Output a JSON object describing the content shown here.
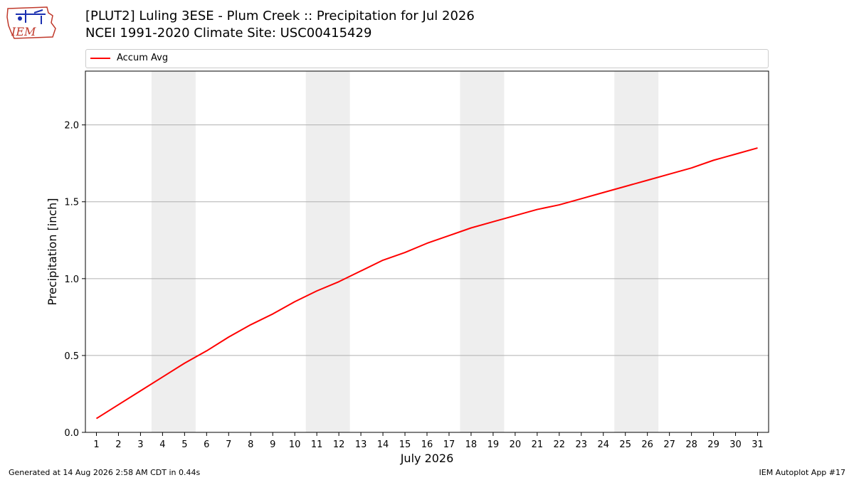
{
  "header": {
    "logo_text": "IEM",
    "title_line1": "[PLUT2] Luling 3ESE - Plum Creek :: Precipitation for Jul 2026",
    "title_line2": "NCEI 1991-2020 Climate Site: USC00415429"
  },
  "footer": {
    "left": "Generated at 14 Aug 2026 2:58 AM CDT in 0.44s",
    "right": "IEM Autoplot App #17"
  },
  "colors": {
    "line": "#ff0000",
    "weekend_shade": "#eeeeee",
    "grid": "#b0b0b0"
  },
  "chart_data": {
    "type": "line",
    "title": "[PLUT2] Luling 3ESE - Plum Creek :: Precipitation for Jul 2026",
    "subtitle": "NCEI 1991-2020 Climate Site: USC00415429",
    "xlabel": "July 2026",
    "ylabel": "Precipitation [inch]",
    "x": [
      1,
      2,
      3,
      4,
      5,
      6,
      7,
      8,
      9,
      10,
      11,
      12,
      13,
      14,
      15,
      16,
      17,
      18,
      19,
      20,
      21,
      22,
      23,
      24,
      25,
      26,
      27,
      28,
      29,
      30,
      31
    ],
    "xlim": [
      0.5,
      31.5
    ],
    "ylim": [
      0,
      2.35
    ],
    "yticks": [
      0.0,
      0.5,
      1.0,
      1.5,
      2.0
    ],
    "ytick_labels": [
      "0.0",
      "0.5",
      "1.0",
      "1.5",
      "2.0"
    ],
    "grid": "horizontal",
    "legend": "top",
    "series": [
      {
        "name": "Accum Avg",
        "color": "#ff0000",
        "values": [
          0.09,
          0.18,
          0.27,
          0.36,
          0.45,
          0.53,
          0.62,
          0.7,
          0.77,
          0.85,
          0.92,
          0.98,
          1.05,
          1.12,
          1.17,
          1.23,
          1.28,
          1.33,
          1.37,
          1.41,
          1.45,
          1.48,
          1.52,
          1.56,
          1.6,
          1.64,
          1.68,
          1.72,
          1.77,
          1.81,
          1.85
        ]
      }
    ],
    "shaded_spans": [
      [
        3.5,
        5.5
      ],
      [
        10.5,
        12.5
      ],
      [
        17.5,
        19.5
      ],
      [
        24.5,
        26.5
      ]
    ]
  }
}
